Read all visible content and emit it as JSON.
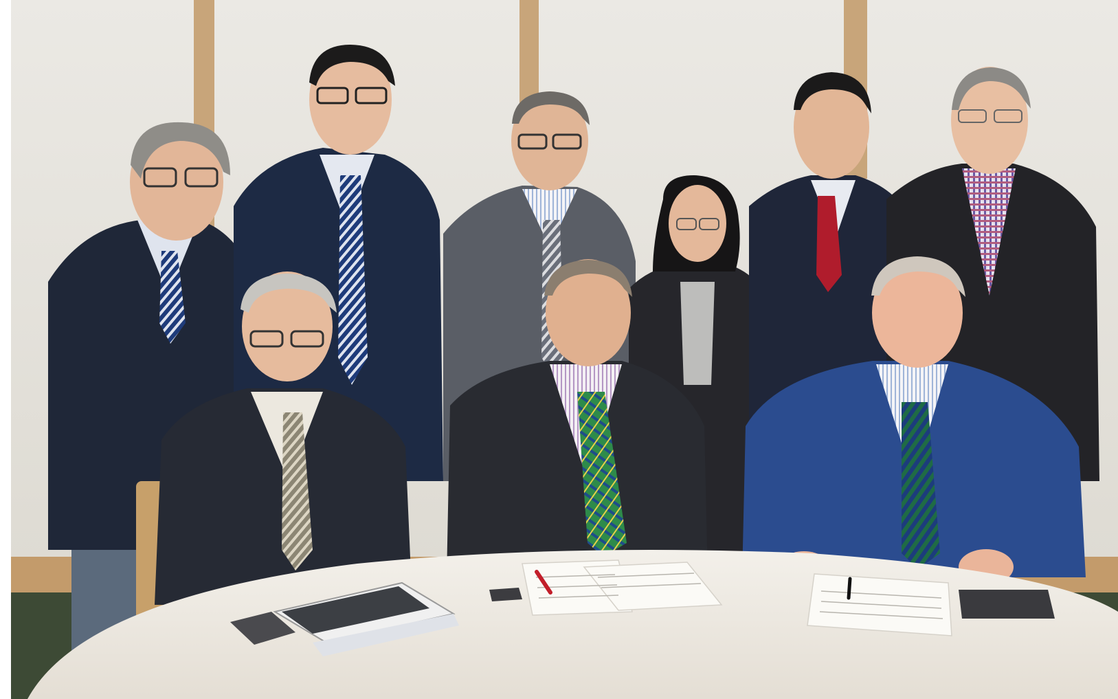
{
  "scene": {
    "description_tag": "group-photo-signing-ceremony",
    "colors": {
      "wall": "#e6e4de",
      "wood_trim": "#c8a57a",
      "carpet": "#3d4a35",
      "tablecloth": "#f1ede6",
      "navy_suit": "#1f2738",
      "charcoal_suit": "#2a2b30",
      "grey_suit": "#5a5e66",
      "blue_suit": "#2b4c8f",
      "red_tie": "#b01c2c",
      "green_tartan": "#2e8b4a",
      "skin": "#e2b698",
      "hair_dark": "#1c1b1b",
      "hair_grey": "#b9b7b3",
      "paper": "#fbfaf6"
    }
  }
}
